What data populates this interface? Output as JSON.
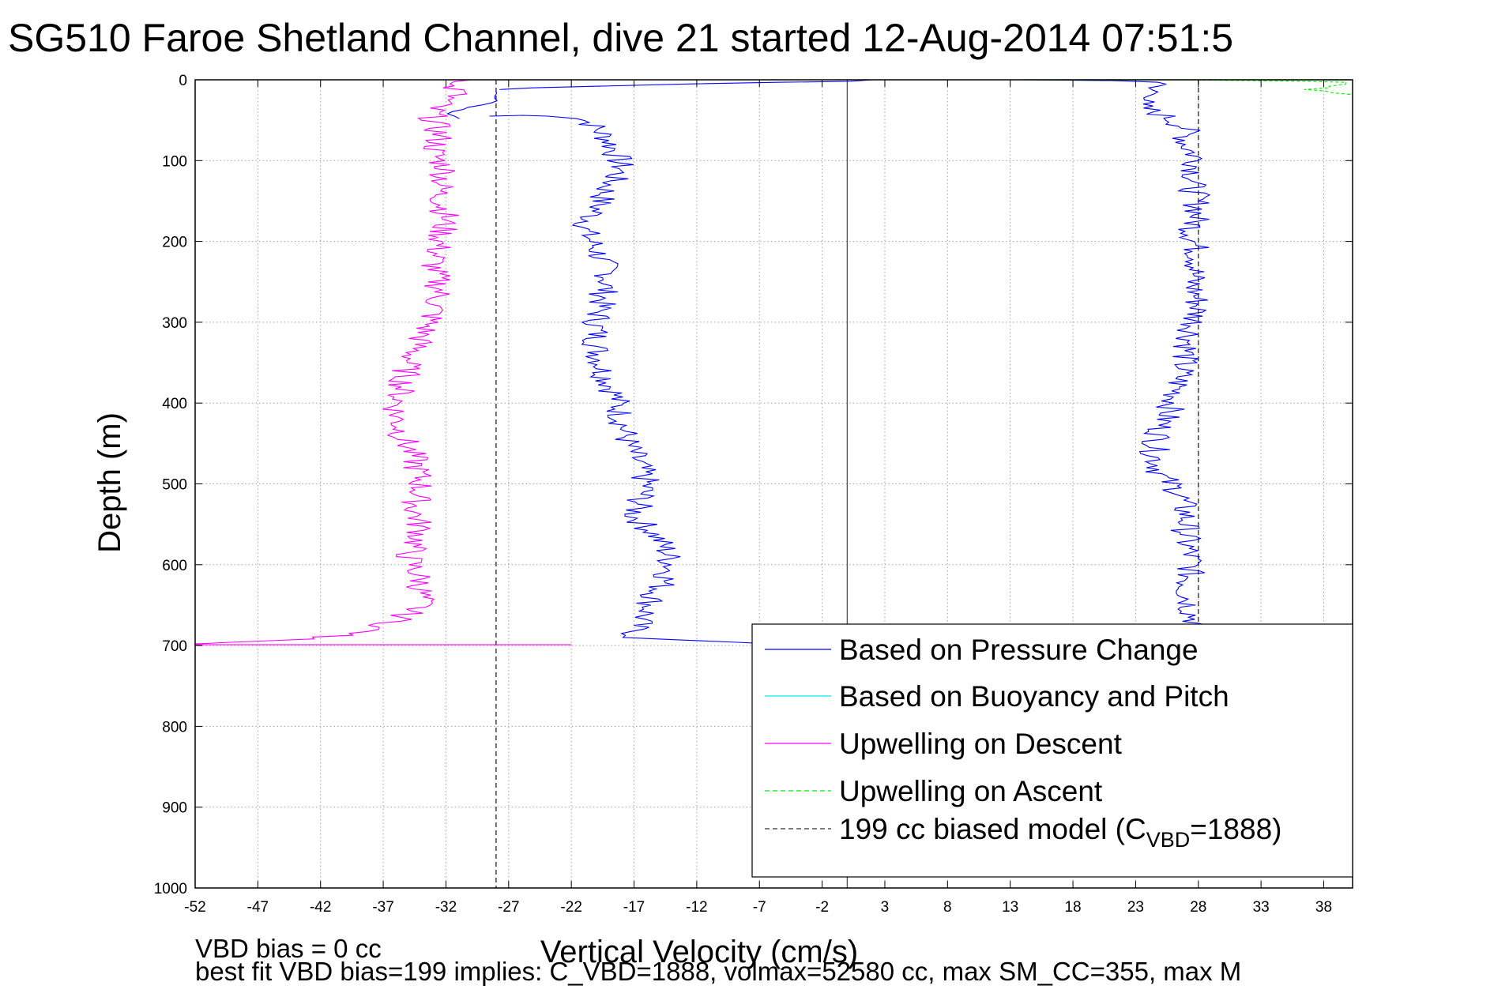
{
  "chart_data": {
    "type": "line",
    "title": "SG510 Faroe Shetland Channel, dive 21 started 12-Aug-2014 07:51:5",
    "xlabel": "Vertical Velocity (cm/s)",
    "ylabel": "Depth (m)",
    "xlim": [
      -52,
      40.3
    ],
    "ylim": [
      0,
      1000
    ],
    "y_reversed": true,
    "grid": true,
    "x_ticks": [
      "-52",
      "-47",
      "-42",
      "-37",
      "-32",
      "-27",
      "-22",
      "-17",
      "-12",
      "-7",
      "-2",
      "3",
      "8",
      "13",
      "18",
      "23",
      "28",
      "33",
      "38"
    ],
    "y_ticks": [
      "0",
      "100",
      "200",
      "300",
      "400",
      "500",
      "600",
      "700",
      "800",
      "900",
      "1000"
    ],
    "notes": [
      "VBD bias = 0 cc",
      "best fit VBD bias=199 implies: C_VBD=1888, volmax=52580 cc, max SM_CC=355, max M"
    ],
    "legend": {
      "placement": "bottom-right",
      "entries": [
        {
          "label": "Based on Pressure Change",
          "color": "#0000ff",
          "style": "solid"
        },
        {
          "label": "Based on Buoyancy and Pitch",
          "color": "#00e5ee",
          "style": "solid"
        },
        {
          "label": "Upwelling on Descent",
          "color": "#ff00ff",
          "style": "solid"
        },
        {
          "label": "Upwelling on Ascent",
          "color": "#00ee00",
          "style": "dashed"
        },
        {
          "label": "199 cc biased model (C",
          "sub": "VBD",
          "suffix": "=1888)",
          "color": "#333333",
          "style": "dashed"
        }
      ]
    },
    "series": [
      {
        "name": "Based on Pressure Change (descent)",
        "color": "#0000ff",
        "points": [
          [
            -28.5,
            45
          ],
          [
            -26,
            44
          ],
          [
            -23,
            45
          ],
          [
            -21,
            48
          ],
          [
            -20,
            60
          ],
          [
            -19,
            75
          ],
          [
            -18.5,
            90
          ],
          [
            -18,
            110
          ],
          [
            -19,
            130
          ],
          [
            -20,
            160
          ],
          [
            -21,
            185
          ],
          [
            -20,
            210
          ],
          [
            -19,
            240
          ],
          [
            -19.5,
            270
          ],
          [
            -20,
            300
          ],
          [
            -20,
            330
          ],
          [
            -19.5,
            360
          ],
          [
            -18.5,
            390
          ],
          [
            -18,
            420
          ],
          [
            -17.5,
            450
          ],
          [
            -16.5,
            480
          ],
          [
            -16,
            500
          ],
          [
            -16.5,
            520
          ],
          [
            -17,
            540
          ],
          [
            -15.5,
            560
          ],
          [
            -14.5,
            580
          ],
          [
            -14,
            600
          ],
          [
            -14.5,
            620
          ],
          [
            -15.5,
            640
          ],
          [
            -16,
            660
          ],
          [
            -17,
            680
          ],
          [
            -17,
            690
          ],
          [
            -14,
            693
          ],
          [
            -9,
            696
          ],
          [
            -6,
            698
          ]
        ]
      },
      {
        "name": "Based on Pressure Change (surface)",
        "color": "#0000ff",
        "points": [
          [
            -28,
            12
          ],
          [
            -25,
            10
          ],
          [
            -20,
            8
          ],
          [
            -12,
            5
          ],
          [
            -5,
            3
          ],
          [
            0,
            2
          ],
          [
            2,
            0
          ]
        ]
      },
      {
        "name": "Based on Pressure Change (shallow)",
        "color": "#0000ff",
        "points": [
          [
            -31,
            48
          ],
          [
            -32,
            42
          ],
          [
            -30,
            34
          ],
          [
            -28,
            26
          ],
          [
            -28,
            20
          ],
          [
            -28,
            14
          ]
        ]
      },
      {
        "name": "Based on Pressure Change (ascent)",
        "color": "#0000ff",
        "points": [
          [
            14,
            0
          ],
          [
            22,
            1
          ],
          [
            25,
            3
          ],
          [
            24,
            10
          ],
          [
            25,
            20
          ],
          [
            23,
            30
          ],
          [
            24.5,
            40
          ],
          [
            26,
            50
          ],
          [
            27,
            60
          ],
          [
            27,
            80
          ],
          [
            28,
            100
          ],
          [
            27.5,
            130
          ],
          [
            28,
            160
          ],
          [
            27.5,
            190
          ],
          [
            28,
            220
          ],
          [
            27.5,
            250
          ],
          [
            28,
            280
          ],
          [
            27.5,
            310
          ],
          [
            27,
            340
          ],
          [
            26.5,
            370
          ],
          [
            26,
            400
          ],
          [
            25,
            430
          ],
          [
            24.5,
            460
          ],
          [
            25,
            490
          ],
          [
            26.5,
            510
          ],
          [
            27,
            540
          ],
          [
            27,
            570
          ],
          [
            27.5,
            600
          ],
          [
            27,
            630
          ],
          [
            27.5,
            660
          ],
          [
            28,
            680
          ],
          [
            28.3,
            700
          ]
        ]
      },
      {
        "name": "Upwelling on Descent",
        "color": "#ff00ff",
        "points": [
          [
            -29,
            0
          ],
          [
            -32,
            5
          ],
          [
            -31,
            15
          ],
          [
            -32,
            25
          ],
          [
            -33,
            35
          ],
          [
            -33,
            50
          ],
          [
            -32.5,
            70
          ],
          [
            -33,
            90
          ],
          [
            -32,
            110
          ],
          [
            -32.5,
            140
          ],
          [
            -32,
            170
          ],
          [
            -32.5,
            200
          ],
          [
            -33,
            230
          ],
          [
            -32.5,
            260
          ],
          [
            -33,
            290
          ],
          [
            -34,
            320
          ],
          [
            -35,
            350
          ],
          [
            -35.5,
            380
          ],
          [
            -36,
            410
          ],
          [
            -35.5,
            440
          ],
          [
            -34.5,
            470
          ],
          [
            -34,
            500
          ],
          [
            -34.5,
            530
          ],
          [
            -34,
            560
          ],
          [
            -35,
            590
          ],
          [
            -34,
            620
          ],
          [
            -34,
            650
          ],
          [
            -36,
            670
          ],
          [
            -39,
            685
          ],
          [
            -45,
            694
          ],
          [
            -52,
            698
          ]
        ]
      },
      {
        "name": "Upwelling on Ascent",
        "color": "#00ee00",
        "points": [
          [
            27,
            0
          ],
          [
            32,
            1
          ],
          [
            37,
            2
          ],
          [
            40,
            3
          ],
          [
            39,
            8
          ],
          [
            37,
            12
          ],
          [
            39,
            16
          ],
          [
            40,
            20
          ]
        ]
      },
      {
        "name": "199 cc biased model",
        "color": "#333333",
        "points": [
          [
            -28,
            0
          ],
          [
            -28,
            1000
          ]
        ]
      },
      {
        "name": "199 cc biased model",
        "color": "#333333",
        "points": [
          [
            28,
            0
          ],
          [
            28,
            700
          ]
        ]
      },
      {
        "name": "zero reference",
        "color": "#555555",
        "points": [
          [
            0,
            0
          ],
          [
            0,
            1000
          ]
        ]
      }
    ]
  }
}
